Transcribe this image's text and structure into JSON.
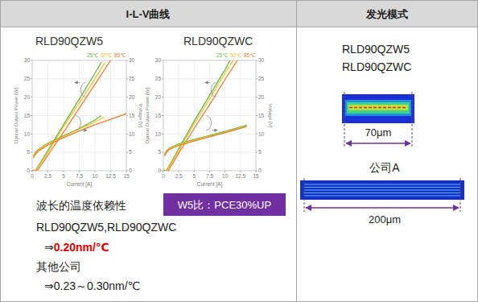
{
  "header": {
    "left": "I-L-V曲线",
    "right": "发光模式"
  },
  "chart_data": [
    {
      "type": "line",
      "title": "RLD90QZW5",
      "x_label": "Current [A]",
      "y_label": "Optical Output Power [W]",
      "y2_label": "Voltage [V]",
      "xlim": [
        0,
        15
      ],
      "xticks": [
        0,
        2.5,
        5,
        7.5,
        10,
        12.5,
        15
      ],
      "ylim": [
        0,
        30
      ],
      "yticks": [
        0,
        5,
        10,
        15,
        20,
        25,
        30
      ],
      "y2lim": [
        0,
        30
      ],
      "y2ticks": [
        0,
        5,
        10,
        15,
        20,
        25,
        30
      ],
      "grid": true,
      "legend": "top-right",
      "series": [
        {
          "name": "25℃",
          "color": "#66b845",
          "x": [
            0,
            0.5,
            2.5,
            5,
            7.5,
            10,
            11
          ],
          "values": [
            0,
            0,
            5.5,
            12.5,
            19.5,
            26.5,
            29.5
          ]
        },
        {
          "name": "50℃",
          "color": "#f2c12e",
          "x": [
            0,
            0.6,
            2.5,
            5,
            7.5,
            10,
            11.6
          ],
          "values": [
            0,
            0,
            5,
            12,
            18.5,
            25,
            29.5
          ]
        },
        {
          "name": "85℃",
          "color": "#ed7d31",
          "x": [
            0,
            0.8,
            2.5,
            5,
            7.5,
            10,
            12.5
          ],
          "values": [
            0,
            0,
            4.2,
            10.5,
            17,
            23.5,
            30
          ]
        },
        {
          "name": "25℃",
          "color": "#66b845",
          "axis": "y2",
          "x": [
            0.2,
            0.5,
            1,
            2.5,
            5,
            7.5,
            10,
            11
          ],
          "values": [
            4,
            5,
            5.8,
            7.5,
            9.5,
            11.5,
            13.8,
            15
          ]
        },
        {
          "name": "50℃",
          "color": "#f2c12e",
          "axis": "y2",
          "x": [
            0.2,
            0.5,
            1,
            2.5,
            5,
            7.5,
            10,
            11.5
          ],
          "values": [
            3.8,
            4.8,
            5.6,
            7.3,
            9.3,
            11.3,
            13.3,
            14.5
          ]
        },
        {
          "name": "85℃",
          "color": "#ed7d31",
          "axis": "y2",
          "x": [
            0.2,
            0.5,
            1,
            2.5,
            5,
            7.5,
            10,
            12.5,
            15
          ],
          "values": [
            3.5,
            4.5,
            5.3,
            7,
            9,
            10.8,
            12.5,
            14,
            15.5
          ]
        }
      ]
    },
    {
      "type": "line",
      "title": "RLD90QZWC",
      "x_label": "Current [A]",
      "y_label": "Optical Output Power [W]",
      "y2_label": "Voltage [V]",
      "xlim": [
        0,
        15
      ],
      "xticks": [
        0,
        2.5,
        5,
        7.5,
        10,
        12.5,
        15
      ],
      "ylim": [
        0,
        30
      ],
      "yticks": [
        0,
        5,
        10,
        15,
        20,
        25,
        30
      ],
      "y2lim": [
        0,
        30
      ],
      "y2ticks": [
        0,
        5,
        10,
        15,
        20,
        25,
        30
      ],
      "grid": true,
      "legend": "top-right",
      "series": [
        {
          "name": "25℃",
          "color": "#66b845",
          "x": [
            0,
            0.5,
            2.5,
            5,
            7.5,
            10,
            10.8
          ],
          "values": [
            0,
            0,
            6,
            13.5,
            20.5,
            27.5,
            30
          ]
        },
        {
          "name": "50℃",
          "color": "#f2c12e",
          "x": [
            0,
            0.6,
            2.5,
            5,
            7.5,
            10,
            11.3
          ],
          "values": [
            0,
            0,
            5.5,
            12.8,
            19.5,
            26.5,
            30
          ]
        },
        {
          "name": "85℃",
          "color": "#ed7d31",
          "x": [
            0,
            0.8,
            2.5,
            5,
            7.5,
            10,
            12
          ],
          "values": [
            0,
            0,
            4.8,
            11.5,
            18,
            24.8,
            30
          ]
        },
        {
          "name": "25℃",
          "color": "#66b845",
          "axis": "y2",
          "x": [
            0.2,
            0.5,
            1,
            2.5,
            5,
            7.5,
            10,
            12.5,
            13.5
          ],
          "values": [
            4.5,
            5.5,
            6.2,
            7.3,
            8.5,
            9.6,
            10.7,
            11.9,
            12.4
          ]
        },
        {
          "name": "50℃",
          "color": "#f2c12e",
          "axis": "y2",
          "x": [
            0.2,
            0.5,
            1,
            2.5,
            5,
            7.5,
            10,
            12.5,
            13.5
          ],
          "values": [
            4.3,
            5.3,
            6,
            7.1,
            8.3,
            9.4,
            10.5,
            11.7,
            12.2
          ]
        },
        {
          "name": "85℃",
          "color": "#ed7d31",
          "axis": "y2",
          "x": [
            0.2,
            0.5,
            1,
            2.5,
            5,
            7.5,
            10,
            12.5,
            13.5
          ],
          "values": [
            4,
            5,
            5.8,
            6.9,
            8.1,
            9.2,
            10.3,
            11.5,
            12
          ]
        }
      ]
    }
  ],
  "notes": {
    "heading": "波长的温度依赖性",
    "badge": "W5比：PCE30%UP",
    "products": "RLD90QZW5,RLD90QZWC",
    "arrow": "⇒",
    "value": "0.20nm/℃",
    "others": "其他公司",
    "others_value": "⇒0.23～0.30nm/℃"
  },
  "modes": {
    "products": [
      "RLD90QZW5",
      "RLD90QZWC"
    ],
    "ours_width": "70μm",
    "company": "公司A",
    "company_width": "200μm"
  }
}
